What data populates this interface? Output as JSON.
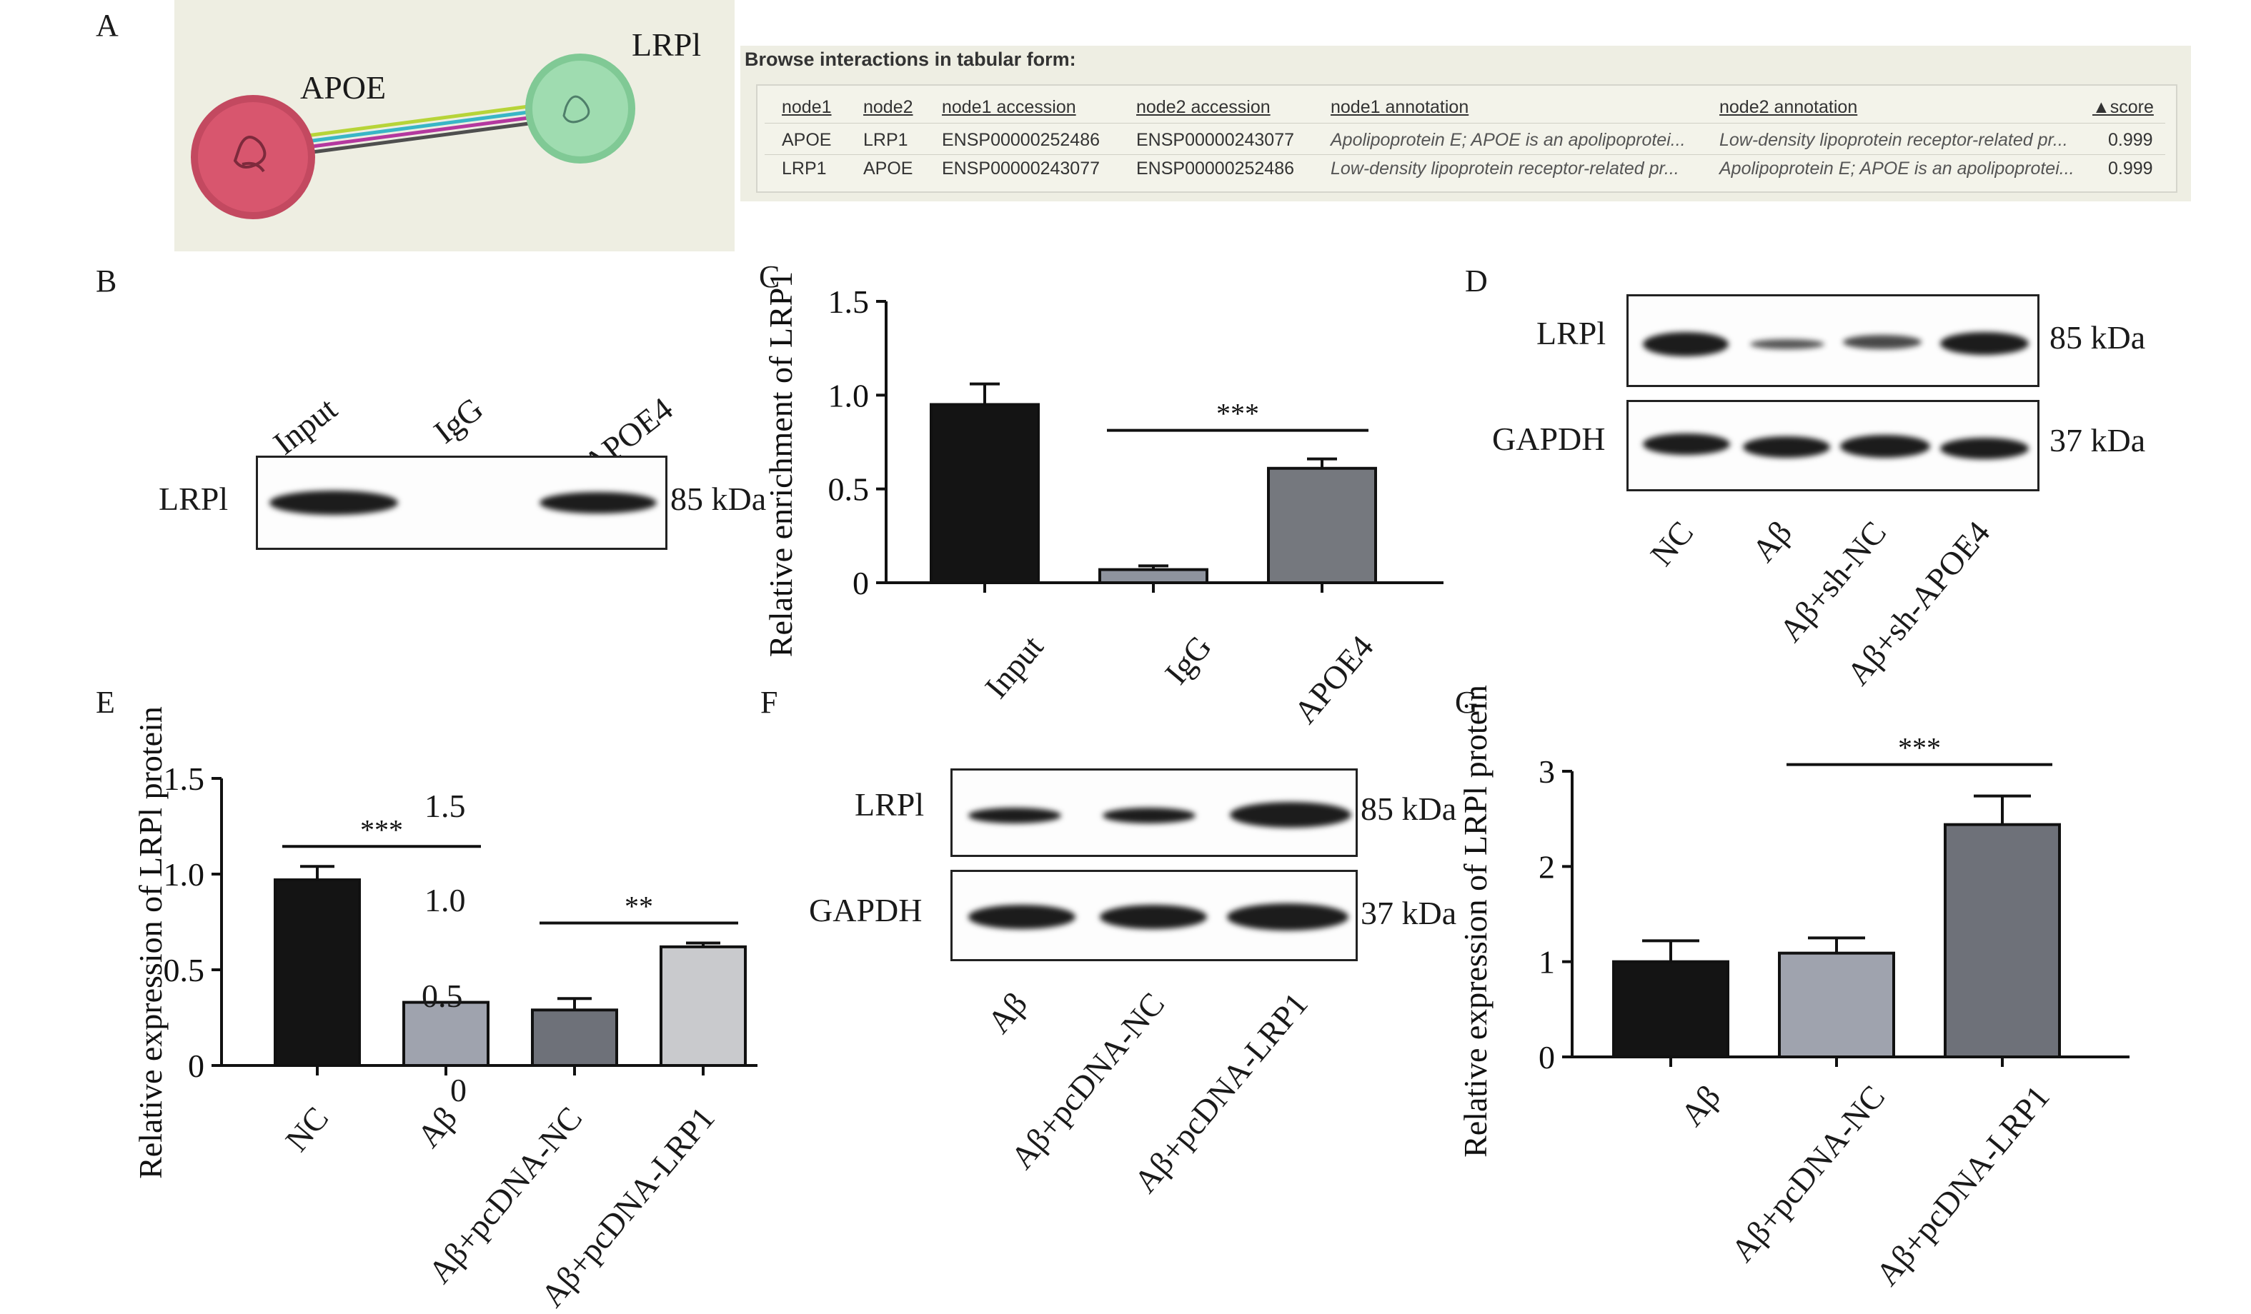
{
  "panels": {
    "a": "A",
    "b": "B",
    "c": "C",
    "d": "D",
    "e": "E",
    "f": "F",
    "g": "G"
  },
  "network": {
    "node1": "APOE",
    "node2": "LRPl",
    "node1_color": "#d8566e",
    "node2_color": "#9fdcb0"
  },
  "string_table": {
    "title": "Browse interactions in tabular form:",
    "headers": [
      "node1",
      "node2",
      "node1 accession",
      "node2 accession",
      "node1 annotation",
      "node2 annotation",
      "▲score"
    ],
    "rows": [
      [
        "APOE",
        "LRP1",
        "ENSP00000252486",
        "ENSP00000243077",
        "Apolipoprotein E; APOE is an apolipoprotei...",
        "Low-density lipoprotein receptor-related pr...",
        "0.999"
      ],
      [
        "LRP1",
        "APOE",
        "ENSP00000243077",
        "ENSP00000252486",
        "Low-density lipoprotein receptor-related pr...",
        "Apolipoprotein E; APOE is an apolipoprotei...",
        "0.999"
      ]
    ]
  },
  "blot_b": {
    "lanes": [
      "Input",
      "IgG",
      "APOE4"
    ],
    "row_label": "LRPl",
    "size": "85 kDa"
  },
  "blot_d": {
    "lanes": [
      "NC",
      "Aβ",
      "Aβ+sh-NC",
      "Aβ+sh-APOE4"
    ],
    "rows": [
      {
        "label": "LRPl",
        "size": "85 kDa"
      },
      {
        "label": "GAPDH",
        "size": "37 kDa"
      }
    ]
  },
  "blot_f": {
    "lanes": [
      "Aβ",
      "Aβ+pcDNA-NC",
      "Aβ+pcDNA-LRP1"
    ],
    "rows": [
      {
        "label": "LRPl",
        "size": "85 kDa"
      },
      {
        "label": "GAPDH",
        "size": "37 kDa"
      }
    ]
  },
  "overlay_e": {
    "ticks": [
      "1.5",
      "1.0",
      "0.5",
      "0"
    ]
  },
  "chart_data": [
    {
      "id": "C",
      "type": "bar",
      "categories": [
        "Input",
        "IgG",
        "APOE4"
      ],
      "values": [
        0.95,
        0.07,
        0.61
      ],
      "errors": [
        0.11,
        0.02,
        0.05
      ],
      "colors": [
        "#141414",
        "#8e939e",
        "#75787e"
      ],
      "ylabel": "Relative enrichment of LRP1",
      "ylim": [
        0,
        1.5
      ],
      "yticks": [
        "0",
        "0.5",
        "1.0",
        "1.5"
      ],
      "significance": [
        {
          "from": 1,
          "to": 2,
          "label": "***"
        }
      ]
    },
    {
      "id": "E",
      "type": "bar",
      "categories": [
        "NC",
        "Aβ",
        "Aβ+pcDNA-NC",
        "Aβ+pcDNA-LRP1"
      ],
      "values": [
        0.97,
        0.33,
        0.29,
        0.62
      ],
      "errors": [
        0.07,
        0.0,
        0.06,
        0.02
      ],
      "colors": [
        "#141414",
        "#9fa3ae",
        "#6e7179",
        "#c9cacd"
      ],
      "ylabel": "Relative expression of LRPl protein",
      "ylim": [
        0,
        1.5
      ],
      "yticks": [
        "0",
        "0.5",
        "1.0",
        "1.5"
      ],
      "significance": [
        {
          "from": 0,
          "to": 1,
          "label": "***"
        },
        {
          "from": 2,
          "to": 3,
          "label": "**"
        }
      ]
    },
    {
      "id": "G",
      "type": "bar",
      "categories": [
        "Aβ",
        "Aβ+pcDNA-NC",
        "Aβ+pcDNA-LRP1"
      ],
      "values": [
        1.0,
        1.09,
        2.44
      ],
      "errors": [
        0.22,
        0.16,
        0.3
      ],
      "colors": [
        "#141414",
        "#9fa3ae",
        "#6e7179"
      ],
      "ylabel": "Relative expression of LRPl protein",
      "ylim": [
        0,
        3
      ],
      "yticks": [
        "0",
        "1",
        "2",
        "3"
      ],
      "significance": [
        {
          "from": 1,
          "to": 2,
          "label": "***"
        }
      ]
    }
  ]
}
